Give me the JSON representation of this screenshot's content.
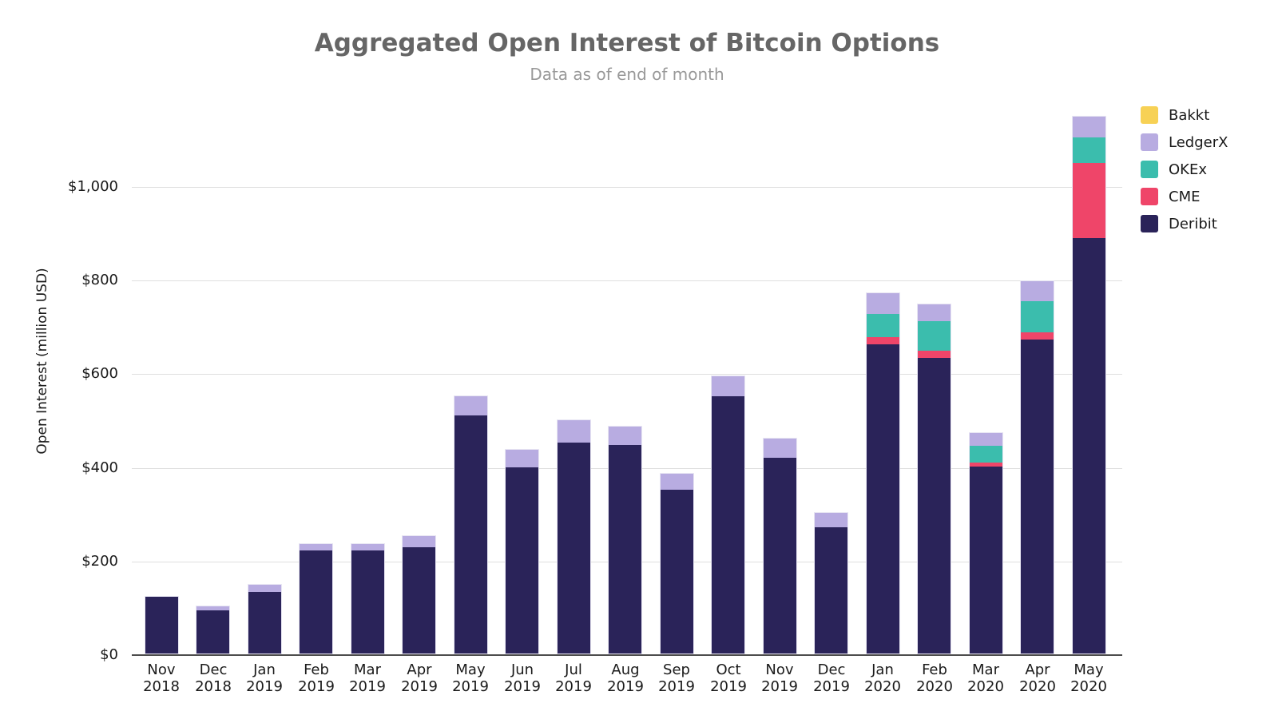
{
  "chart": {
    "title": "Aggregated Open Interest of Bitcoin Options",
    "subtitle": "Data as of end of month",
    "ylabel": "Open Interest (million USD)"
  },
  "chart_data": {
    "type": "bar",
    "stacked": true,
    "title": "Aggregated Open Interest of Bitcoin Options",
    "subtitle": "Data as of end of month",
    "xlabel": "",
    "ylabel": "Open Interest (million USD)",
    "unit": "million USD",
    "grid": "horizontal",
    "legend_position": "top-right",
    "legend_order_top_to_bottom": [
      "Bakkt",
      "LedgerX",
      "OKEx",
      "CME",
      "Deribit"
    ],
    "ylim": [
      0,
      1200
    ],
    "y_ticks": [
      {
        "value": 0,
        "label": "$0"
      },
      {
        "value": 200,
        "label": "$200"
      },
      {
        "value": 400,
        "label": "$400"
      },
      {
        "value": 600,
        "label": "$600"
      },
      {
        "value": 800,
        "label": "$800"
      },
      {
        "value": 1000,
        "label": "$1,000"
      }
    ],
    "categories": [
      "Nov 2018",
      "Dec 2018",
      "Jan 2019",
      "Feb 2019",
      "Mar 2019",
      "Apr 2019",
      "May 2019",
      "Jun 2019",
      "Jul 2019",
      "Aug 2019",
      "Sep 2019",
      "Oct 2019",
      "Nov 2019",
      "Dec 2019",
      "Jan 2020",
      "Feb 2020",
      "Mar 2020",
      "Apr 2020",
      "May 2020"
    ],
    "series": [
      {
        "name": "Deribit",
        "color": "#2A2359",
        "values": [
          122,
          93,
          132,
          220,
          220,
          227,
          509,
          398,
          450,
          445,
          350,
          549,
          418,
          270,
          660,
          632,
          400,
          671,
          887
        ]
      },
      {
        "name": "CME",
        "color": "#EF4569",
        "values": [
          0,
          0,
          0,
          0,
          0,
          0,
          0,
          0,
          0,
          0,
          0,
          0,
          0,
          0,
          15,
          16,
          9,
          15,
          161
        ]
      },
      {
        "name": "OKEx",
        "color": "#3BBDAD",
        "values": [
          0,
          0,
          0,
          0,
          0,
          0,
          0,
          0,
          0,
          0,
          0,
          0,
          0,
          0,
          50,
          63,
          35,
          66,
          55
        ]
      },
      {
        "name": "LedgerX",
        "color": "#B8ACE1",
        "values": [
          0,
          8,
          15,
          14,
          14,
          24,
          41,
          37,
          47,
          40,
          34,
          43,
          41,
          31,
          44,
          35,
          27,
          43,
          45
        ]
      },
      {
        "name": "Bakkt",
        "color": "#F7D155",
        "values": [
          0,
          0,
          0,
          0,
          0,
          0,
          0,
          0,
          0,
          0,
          0,
          0,
          0,
          0,
          0,
          0,
          0,
          0,
          0
        ]
      }
    ],
    "totals": [
      122,
      101,
      147,
      234,
      234,
      251,
      550,
      435,
      497,
      485,
      384,
      592,
      459,
      301,
      769,
      746,
      471,
      795,
      1148
    ]
  },
  "style": {
    "title_color": "#666666",
    "subtitle_color": "#999999",
    "axis_text_color": "#1a1a1a",
    "gridline_color": "#dfdfdf",
    "axis_line_color": "#4d4d4d",
    "bar_border_color": "#E6E3F2",
    "background": "#FFFFFF"
  }
}
